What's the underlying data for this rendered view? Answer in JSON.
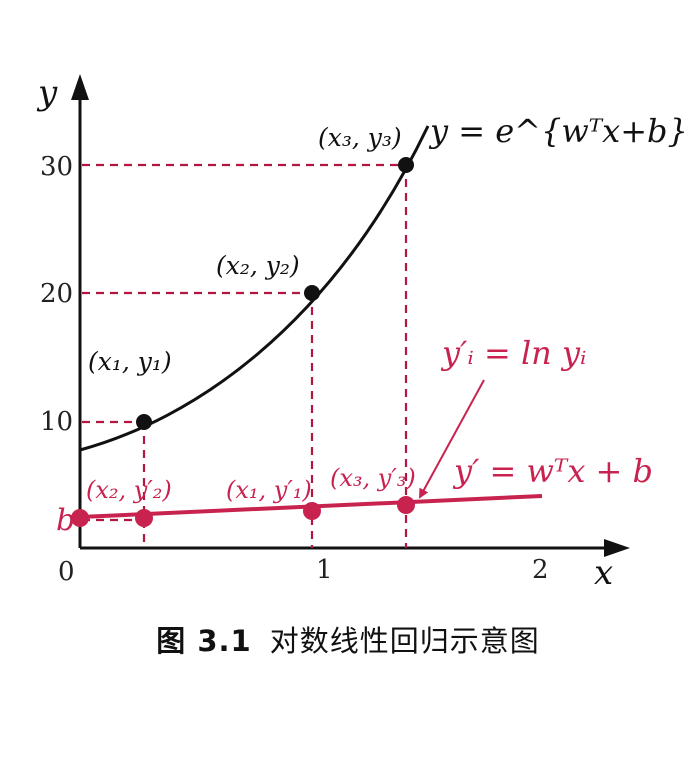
{
  "figure": {
    "caption_number": "图 3.1",
    "caption_title": "对数线性回归示意图"
  },
  "chart_data": {
    "type": "line",
    "xlabel": "x",
    "ylabel": "y",
    "x_ticks": [
      "0",
      "1",
      "2"
    ],
    "y_ticks": [
      "10",
      "20",
      "30"
    ],
    "y_intercept_label": "b",
    "xlim": [
      0,
      2.35
    ],
    "ylim": [
      0,
      37
    ],
    "grid": false,
    "series": [
      {
        "name": "y = e^{wᵀx+b}",
        "kind": "curve",
        "color": "#111111",
        "x": [
          0,
          0.2,
          0.4,
          0.6,
          0.8,
          1.0,
          1.2,
          1.4,
          1.5
        ],
        "y": [
          7.6,
          9.0,
          10.9,
          13.3,
          16.2,
          19.8,
          24.5,
          30.2,
          33.2
        ],
        "points": [
          {
            "label": "(x₁, y₁)",
            "x": 0.28,
            "y": 9.7
          },
          {
            "label": "(x₂, y₂)",
            "x": 0.98,
            "y": 19.9
          },
          {
            "label": "(x₃, y₃)",
            "x": 1.38,
            "y": 29.9
          }
        ]
      },
      {
        "name": "y′ = wᵀx + b",
        "kind": "line",
        "color": "#c8234f",
        "x": [
          0,
          2.0
        ],
        "y": [
          2.2,
          3.7
        ],
        "points": [
          {
            "label": "(x₂, y′₂)",
            "x": 0,
            "y": 2.2
          },
          {
            "label": "",
            "x": 0.28,
            "y": 2.1
          },
          {
            "label": "(x₁, y′₁)",
            "x": 0.98,
            "y": 2.7
          },
          {
            "label": "(x₃, y′₃)",
            "x": 1.38,
            "y": 3.1
          }
        ]
      }
    ],
    "annotations": [
      {
        "text": "y′ᵢ = ln yᵢ",
        "color": "#c8234f"
      }
    ]
  }
}
